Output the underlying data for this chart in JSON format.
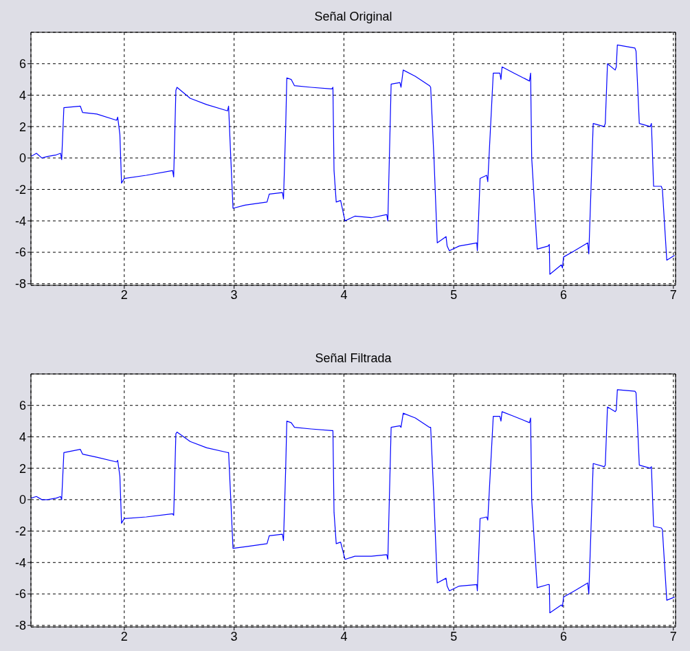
{
  "chart_data": [
    {
      "type": "line",
      "title": "Señal Original",
      "xlim": [
        1.15,
        7.02
      ],
      "ylim": [
        -8.1,
        8
      ],
      "xticks": [
        2,
        3,
        4,
        5,
        6,
        7
      ],
      "yticks": [
        -8,
        -6,
        -4,
        -2,
        0,
        2,
        4,
        6
      ],
      "grid": true,
      "series": [
        {
          "color": "#0000ff",
          "x": [
            1.15,
            1.2,
            1.25,
            1.3,
            1.38,
            1.42,
            1.43,
            1.45,
            1.6,
            1.62,
            1.75,
            1.93,
            1.94,
            1.96,
            1.975,
            2.0,
            2.2,
            2.44,
            2.45,
            2.47,
            2.48,
            2.6,
            2.75,
            2.94,
            2.95,
            2.97,
            2.99,
            3.1,
            3.3,
            3.32,
            3.44,
            3.45,
            3.47,
            3.48,
            3.52,
            3.55,
            3.7,
            3.89,
            3.9,
            3.91,
            3.93,
            3.97,
            4.01,
            4.1,
            4.25,
            4.39,
            4.4,
            4.43,
            4.51,
            4.52,
            4.54,
            4.65,
            4.78,
            4.79,
            4.82,
            4.85,
            4.93,
            4.94,
            4.96,
            5.05,
            5.21,
            5.215,
            5.24,
            5.3,
            5.31,
            5.36,
            5.42,
            5.43,
            5.44,
            5.55,
            5.69,
            5.7,
            5.71,
            5.76,
            5.86,
            5.87,
            5.875,
            5.98,
            5.99,
            6.0,
            6.1,
            6.22,
            6.23,
            6.27,
            6.37,
            6.38,
            6.4,
            6.47,
            6.48,
            6.49,
            6.65,
            6.66,
            6.69,
            6.79,
            6.8,
            6.82,
            6.89,
            6.9,
            6.94,
            7.01
          ],
          "values": [
            0.1,
            0.3,
            0.0,
            0.1,
            0.2,
            0.3,
            -0.1,
            3.2,
            3.3,
            2.9,
            2.8,
            2.4,
            2.6,
            1.5,
            -1.6,
            -1.3,
            -1.1,
            -0.8,
            -1.2,
            4.3,
            4.5,
            3.8,
            3.4,
            3.0,
            3.3,
            0,
            -3.2,
            -3.0,
            -2.8,
            -2.3,
            -2.2,
            -2.6,
            2.0,
            5.1,
            5.0,
            4.6,
            4.5,
            4.4,
            4.5,
            -0.8,
            -2.8,
            -2.7,
            -4.0,
            -3.7,
            -3.8,
            -3.6,
            -4.0,
            4.7,
            4.8,
            4.5,
            5.6,
            5.2,
            4.6,
            4.5,
            0,
            -5.4,
            -5.0,
            -5.6,
            -5.9,
            -5.6,
            -5.4,
            -5.9,
            -1.3,
            -1.1,
            -1.5,
            5.4,
            5.4,
            5.0,
            5.8,
            5.4,
            4.9,
            5.4,
            0,
            -5.8,
            -5.6,
            -5.5,
            -7.4,
            -6.8,
            -7.0,
            -6.3,
            -5.9,
            -5.4,
            -6.1,
            2.2,
            2.0,
            2.2,
            6.0,
            5.6,
            5.8,
            7.2,
            7.0,
            6.8,
            2.2,
            2.0,
            2.2,
            -1.8,
            -1.8,
            -2.0,
            -6.5,
            -6.2
          ]
        }
      ]
    },
    {
      "type": "line",
      "title": "Señal Filtrada",
      "xlim": [
        1.15,
        7.02
      ],
      "ylim": [
        -8.1,
        8
      ],
      "xticks": [
        2,
        3,
        4,
        5,
        6,
        7
      ],
      "yticks": [
        -8,
        -6,
        -4,
        -2,
        0,
        2,
        4,
        6
      ],
      "grid": true,
      "series": [
        {
          "color": "#0000ff",
          "x": [
            1.15,
            1.2,
            1.25,
            1.3,
            1.38,
            1.42,
            1.43,
            1.45,
            1.6,
            1.62,
            1.75,
            1.93,
            1.94,
            1.96,
            1.975,
            2.0,
            2.2,
            2.44,
            2.45,
            2.47,
            2.48,
            2.6,
            2.75,
            2.94,
            2.95,
            2.97,
            2.99,
            3.1,
            3.3,
            3.32,
            3.44,
            3.45,
            3.47,
            3.48,
            3.52,
            3.55,
            3.7,
            3.89,
            3.9,
            3.91,
            3.93,
            3.97,
            4.01,
            4.1,
            4.25,
            4.39,
            4.4,
            4.43,
            4.51,
            4.52,
            4.54,
            4.65,
            4.78,
            4.79,
            4.82,
            4.85,
            4.93,
            4.94,
            4.96,
            5.05,
            5.21,
            5.215,
            5.24,
            5.3,
            5.31,
            5.36,
            5.42,
            5.43,
            5.44,
            5.55,
            5.69,
            5.7,
            5.71,
            5.76,
            5.86,
            5.87,
            5.875,
            5.98,
            5.99,
            6.0,
            6.1,
            6.22,
            6.23,
            6.27,
            6.37,
            6.38,
            6.4,
            6.47,
            6.48,
            6.49,
            6.65,
            6.66,
            6.69,
            6.79,
            6.8,
            6.82,
            6.89,
            6.9,
            6.94,
            7.01
          ],
          "values": [
            0.1,
            0.2,
            0.0,
            0.0,
            0.1,
            0.2,
            0.0,
            3.0,
            3.2,
            2.9,
            2.7,
            2.4,
            2.5,
            1.5,
            -1.5,
            -1.2,
            -1.1,
            -0.9,
            -1.0,
            4.2,
            4.3,
            3.7,
            3.3,
            3.0,
            3.0,
            0,
            -3.1,
            -3.0,
            -2.8,
            -2.3,
            -2.2,
            -2.6,
            2.0,
            5.0,
            4.9,
            4.6,
            4.5,
            4.4,
            4.4,
            -0.8,
            -2.8,
            -2.7,
            -3.8,
            -3.6,
            -3.6,
            -3.5,
            -3.8,
            4.6,
            4.7,
            4.6,
            5.5,
            5.2,
            4.6,
            4.6,
            0,
            -5.3,
            -5.0,
            -5.5,
            -5.8,
            -5.5,
            -5.4,
            -5.8,
            -1.2,
            -1.1,
            -1.3,
            5.3,
            5.3,
            5.0,
            5.6,
            5.3,
            4.9,
            5.2,
            0,
            -5.6,
            -5.4,
            -5.4,
            -7.2,
            -6.7,
            -6.8,
            -6.2,
            -5.8,
            -5.3,
            -6.0,
            2.3,
            2.1,
            2.2,
            5.9,
            5.6,
            5.7,
            7.0,
            6.9,
            6.8,
            2.2,
            2.0,
            2.1,
            -1.7,
            -1.8,
            -1.9,
            -6.4,
            -6.2
          ]
        }
      ]
    }
  ]
}
